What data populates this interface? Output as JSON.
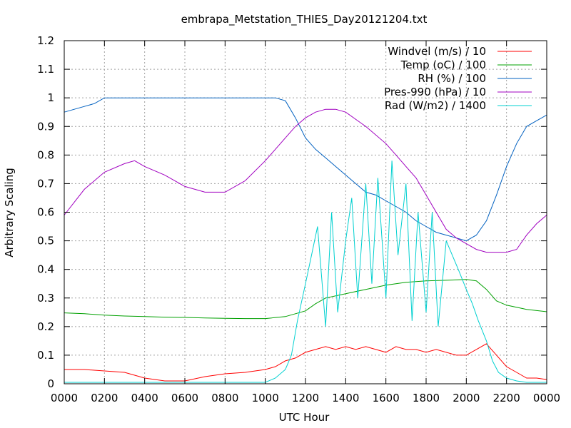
{
  "chart_data": {
    "type": "line",
    "title": "embrapa_Metstation_THIES_Day20121204.txt",
    "xlabel": "UTC Hour",
    "ylabel": "Arbitrary Scaling",
    "xlim": [
      0,
      24
    ],
    "ylim": [
      0,
      1.2
    ],
    "grid": true,
    "legend_position": "top-right",
    "x_tick_values": [
      0,
      2,
      4,
      6,
      8,
      10,
      12,
      14,
      16,
      18,
      20,
      22,
      24
    ],
    "x_tick_labels": [
      "0000",
      "0200",
      "0400",
      "0600",
      "0800",
      "1000",
      "1200",
      "1400",
      "1600",
      "1800",
      "2000",
      "2200",
      "0000"
    ],
    "y_tick_values": [
      0,
      0.1,
      0.2,
      0.3,
      0.4,
      0.5,
      0.6,
      0.7,
      0.8,
      0.9,
      1.0,
      1.1,
      1.2
    ],
    "y_tick_labels": [
      "0",
      "0.1",
      "0.2",
      "0.3",
      "0.4",
      "0.5",
      "0.6",
      "0.7",
      "0.8",
      "0.9",
      "1",
      "1.1",
      "1.2"
    ],
    "series": [
      {
        "name": "Windvel (m/s) / 10",
        "color": "#ff0000",
        "x": [
          0,
          1,
          2,
          3,
          4,
          5,
          6,
          7,
          8,
          9,
          10,
          10.5,
          11,
          11.5,
          12,
          12.5,
          13,
          13.5,
          14,
          14.5,
          15,
          15.5,
          16,
          16.5,
          17,
          17.5,
          18,
          18.5,
          19,
          19.5,
          20,
          20.5,
          21,
          21.5,
          22,
          22.5,
          23,
          23.5,
          24
        ],
        "y": [
          0.05,
          0.05,
          0.045,
          0.04,
          0.02,
          0.01,
          0.01,
          0.025,
          0.035,
          0.04,
          0.05,
          0.06,
          0.08,
          0.09,
          0.11,
          0.12,
          0.13,
          0.12,
          0.13,
          0.12,
          0.13,
          0.12,
          0.11,
          0.13,
          0.12,
          0.12,
          0.11,
          0.12,
          0.11,
          0.1,
          0.1,
          0.12,
          0.14,
          0.1,
          0.06,
          0.04,
          0.02,
          0.02,
          0.015
        ]
      },
      {
        "name": "Temp (oC) / 100",
        "color": "#00a000",
        "x": [
          0,
          1,
          2,
          3,
          4,
          5,
          6,
          7,
          8,
          9,
          10,
          11,
          12,
          12.5,
          13,
          14,
          15,
          16,
          17,
          18,
          19,
          20,
          20.5,
          21,
          21.5,
          22,
          23,
          24
        ],
        "y": [
          0.248,
          0.245,
          0.24,
          0.237,
          0.235,
          0.233,
          0.232,
          0.23,
          0.229,
          0.228,
          0.228,
          0.235,
          0.255,
          0.28,
          0.3,
          0.315,
          0.33,
          0.345,
          0.355,
          0.36,
          0.362,
          0.365,
          0.36,
          0.33,
          0.29,
          0.275,
          0.26,
          0.252
        ]
      },
      {
        "name": "RH (%) / 100",
        "color": "#0060c0",
        "x": [
          0,
          1,
          1.5,
          2,
          3,
          4,
          5,
          6,
          7,
          8,
          9,
          10,
          10.5,
          11,
          11.5,
          12,
          12.5,
          13,
          13.5,
          14,
          14.5,
          15,
          15.5,
          16,
          16.5,
          17,
          17.5,
          18,
          18.5,
          19,
          19.5,
          20,
          20.5,
          21,
          21.5,
          22,
          22.5,
          23,
          23.5,
          24
        ],
        "y": [
          0.95,
          0.97,
          0.98,
          1.0,
          1.0,
          1.0,
          1.0,
          1.0,
          1.0,
          1.0,
          1.0,
          1.0,
          1.0,
          0.99,
          0.93,
          0.86,
          0.82,
          0.79,
          0.76,
          0.73,
          0.7,
          0.67,
          0.66,
          0.64,
          0.62,
          0.6,
          0.57,
          0.55,
          0.53,
          0.52,
          0.51,
          0.5,
          0.52,
          0.57,
          0.66,
          0.76,
          0.84,
          0.9,
          0.92,
          0.94
        ]
      },
      {
        "name": "Pres-990 (hPa) / 10",
        "color": "#a000c0",
        "x": [
          0,
          1,
          2,
          3,
          3.5,
          4,
          5,
          6,
          7,
          8,
          9,
          10,
          11,
          11.5,
          12,
          12.5,
          13,
          13.5,
          14,
          15,
          16,
          16.5,
          17,
          17.5,
          18,
          18.5,
          19,
          19.5,
          20,
          20.5,
          21,
          21.5,
          22,
          22.5,
          23,
          23.5,
          24
        ],
        "y": [
          0.59,
          0.68,
          0.74,
          0.77,
          0.78,
          0.76,
          0.73,
          0.69,
          0.67,
          0.67,
          0.71,
          0.78,
          0.86,
          0.9,
          0.93,
          0.95,
          0.96,
          0.96,
          0.95,
          0.9,
          0.84,
          0.8,
          0.76,
          0.72,
          0.66,
          0.6,
          0.54,
          0.51,
          0.49,
          0.47,
          0.46,
          0.46,
          0.46,
          0.47,
          0.52,
          0.56,
          0.59
        ]
      },
      {
        "name": "Rad (W/m2) / 1400",
        "color": "#00d0d0",
        "x": [
          0,
          1,
          2,
          3,
          4,
          5,
          6,
          7,
          8,
          9,
          10,
          10.5,
          11,
          11.3,
          11.6,
          12,
          12.3,
          12.6,
          13,
          13.3,
          13.6,
          14,
          14.3,
          14.6,
          15,
          15.3,
          15.6,
          16,
          16.3,
          16.6,
          17,
          17.3,
          17.6,
          18,
          18.3,
          18.6,
          19,
          19.3,
          19.6,
          20,
          20.3,
          20.6,
          21,
          21.3,
          21.6,
          22,
          22.5,
          23,
          24
        ],
        "y": [
          0.005,
          0.005,
          0.005,
          0.005,
          0.005,
          0.005,
          0.005,
          0.005,
          0.005,
          0.005,
          0.005,
          0.02,
          0.05,
          0.1,
          0.22,
          0.35,
          0.45,
          0.55,
          0.2,
          0.6,
          0.25,
          0.5,
          0.65,
          0.3,
          0.7,
          0.35,
          0.72,
          0.3,
          0.78,
          0.45,
          0.7,
          0.22,
          0.6,
          0.25,
          0.6,
          0.2,
          0.5,
          0.45,
          0.4,
          0.33,
          0.28,
          0.22,
          0.15,
          0.08,
          0.04,
          0.02,
          0.01,
          0.005,
          0.005
        ]
      }
    ]
  }
}
